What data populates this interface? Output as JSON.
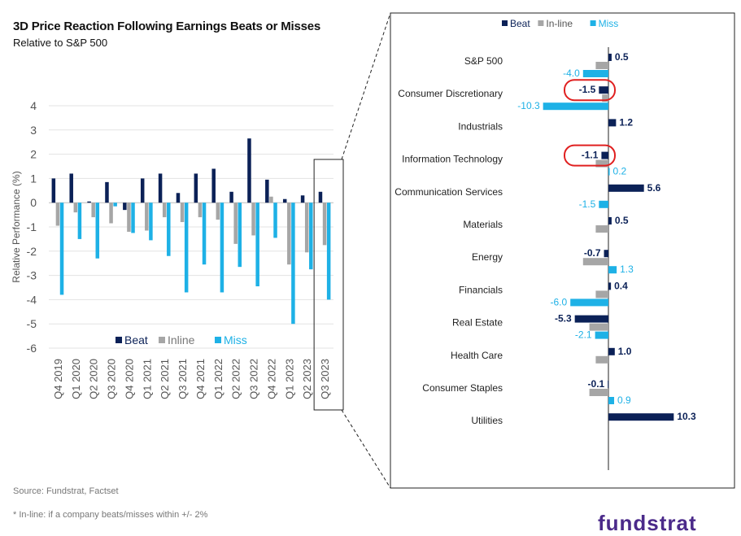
{
  "title": "3D Price Reaction Following Earnings Beats or Misses",
  "subtitle": "Relative to S&P 500",
  "source": "Source: Fundstrat, Factset",
  "footnote": "* In-line: if a company beats/misses within +/- 2%",
  "brand": "fundstrat",
  "colors": {
    "beat": "#0b2157",
    "inline": "#a6a6a6",
    "miss": "#1eb1e6",
    "highlight": "#e02020"
  },
  "chart_data": [
    {
      "type": "bar",
      "title": "",
      "ylabel": "Relative Performance (%)",
      "xlabel": "",
      "ylim": [
        -6,
        4
      ],
      "yticks": [
        "4",
        "3",
        "2",
        "1",
        "0",
        "-1",
        "-2",
        "-3",
        "-4",
        "-5",
        "-6"
      ],
      "grid": true,
      "legend": {
        "position": "bottom-center",
        "entries": [
          "Beat",
          "Inline",
          "Miss"
        ]
      },
      "categories": [
        "Q4 2019",
        "Q1 2020",
        "Q2 2020",
        "Q3 2020",
        "Q4 2020",
        "Q1 2021",
        "Q2 2021",
        "Q3 2021",
        "Q4 2021",
        "Q1 2022",
        "Q2 2022",
        "Q3 2022",
        "Q4 2022",
        "Q1 2023",
        "Q2 2023",
        "Q3 2023"
      ],
      "series": [
        {
          "name": "Beat",
          "values": [
            1.0,
            1.2,
            0.05,
            0.85,
            -0.3,
            1.0,
            1.2,
            0.4,
            1.2,
            1.4,
            0.45,
            2.65,
            0.95,
            0.15,
            0.3,
            0.45
          ]
        },
        {
          "name": "Inline",
          "values": [
            -0.95,
            -0.4,
            -0.6,
            -0.85,
            -1.2,
            -1.15,
            -0.6,
            -0.8,
            -0.6,
            -0.7,
            -1.7,
            -1.35,
            0.25,
            -2.55,
            -2.05,
            -1.75
          ]
        },
        {
          "name": "Miss",
          "values": [
            -3.8,
            -1.5,
            -2.3,
            -0.15,
            -1.25,
            -1.55,
            -2.2,
            -3.7,
            -2.55,
            -3.7,
            -2.65,
            -3.45,
            -1.45,
            -5.0,
            -2.75,
            -4.0
          ]
        }
      ],
      "highlighted_category": "Q3 2023"
    },
    {
      "type": "bar",
      "orientation": "horizontal",
      "title": "",
      "legend": {
        "position": "top-center",
        "entries": [
          "Beat",
          "In-line",
          "Miss"
        ]
      },
      "categories": [
        "S&P 500",
        "Consumer Discretionary",
        "Industrials",
        "Information Technology",
        "Communication Services",
        "Materials",
        "Energy",
        "Financials",
        "Real Estate",
        "Health Care",
        "Consumer Staples",
        "Utilities"
      ],
      "series": [
        {
          "name": "Beat",
          "values": [
            0.5,
            -1.5,
            1.2,
            -1.1,
            5.6,
            0.5,
            -0.7,
            0.4,
            -5.3,
            1.0,
            -0.1,
            10.3
          ]
        },
        {
          "name": "In-line",
          "values": [
            -2.0,
            -1.0,
            null,
            -2.0,
            null,
            -2.0,
            -4.0,
            -2.0,
            -3.0,
            -2.0,
            -3.0,
            null
          ]
        },
        {
          "name": "Miss",
          "values": [
            -4.0,
            -10.3,
            null,
            0.2,
            -1.5,
            null,
            1.3,
            -6.0,
            -2.1,
            null,
            0.9,
            null
          ]
        }
      ],
      "data_labels": {
        "Beat": [
          "0.5",
          "-1.5",
          "1.2",
          "-1.1",
          "5.6",
          "0.5",
          "-0.7",
          "0.4",
          "-5.3",
          "1.0",
          "-0.1",
          "10.3"
        ],
        "Miss": [
          "-4.0",
          "-10.3",
          "",
          "0.2",
          "-1.5",
          "",
          "1.3",
          "-6.0",
          "-2.1",
          "",
          "0.9",
          ""
        ]
      },
      "circled_labels": [
        "Consumer Discretionary",
        "Information Technology"
      ]
    }
  ]
}
